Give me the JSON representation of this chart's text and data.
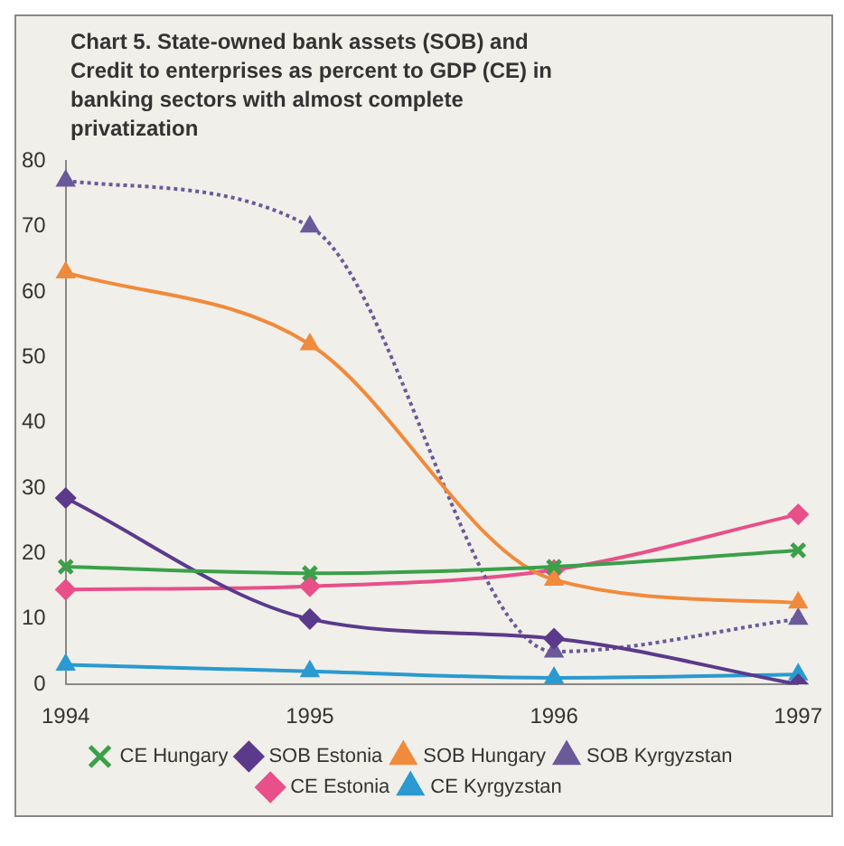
{
  "chart_data": {
    "type": "line",
    "title": "Chart 5. State-owned bank assets (SOB) and Credit to enterprises as percent to GDP (CE)  in  banking sectors with almost complete privatization",
    "categories": [
      "1994",
      "1995",
      "1996",
      "1997"
    ],
    "series": [
      {
        "name": "SOB Estonia",
        "color": "#5b3a8c",
        "marker": "diamond",
        "values": [
          28.5,
          10,
          7,
          0
        ]
      },
      {
        "name": "SOB Hungary",
        "color": "#f08a3c",
        "marker": "triangle",
        "values": [
          63,
          52,
          16,
          12.5
        ]
      },
      {
        "name": "SOB Kyrgyzstan",
        "color": "#6a5a9a",
        "marker": "triangle",
        "line_style": "dotted",
        "values": [
          77,
          70,
          5,
          10
        ]
      },
      {
        "name": "CE Estonia",
        "color": "#e8508a",
        "marker": "diamond",
        "values": [
          14.5,
          15,
          17.5,
          26
        ]
      },
      {
        "name": "CE Hungary",
        "color": "#3aa04a",
        "marker": "cross",
        "values": [
          18,
          17,
          18,
          20.5
        ]
      },
      {
        "name": "CE Kyrgyzstan",
        "color": "#2a9ad0",
        "marker": "triangle",
        "values": [
          3,
          2,
          1,
          1.5
        ]
      }
    ],
    "ylim": [
      0,
      80
    ],
    "yticks": [
      0,
      10,
      20,
      30,
      40,
      50,
      60,
      70,
      80
    ],
    "grid": false,
    "legend": "bottom"
  }
}
